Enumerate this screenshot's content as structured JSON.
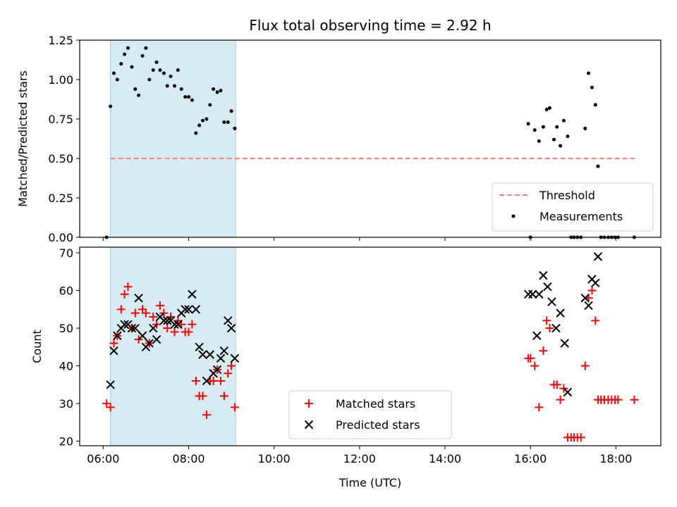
{
  "chart_data": {
    "type": "scatter",
    "title": "Flux total observing time = 2.92 h",
    "xlabel": "Time (UTC)",
    "x_ticks": [
      "06:00",
      "08:00",
      "10:00",
      "12:00",
      "14:00",
      "16:00",
      "18:00"
    ],
    "x_tick_hours": [
      6,
      8,
      10,
      12,
      14,
      16,
      18
    ],
    "x_range_hours": [
      5.45,
      19.05
    ],
    "shaded_region_hours": [
      6.17,
      9.1
    ],
    "shade_color": "#add8e6",
    "top": {
      "ylabel": "Matched/Predicted stars",
      "ylim": [
        0,
        1.25
      ],
      "y_ticks": [
        "0.00",
        "0.25",
        "0.50",
        "0.75",
        "1.00",
        "1.25"
      ],
      "y_tick_values": [
        0,
        0.25,
        0.5,
        0.75,
        1.0,
        1.25
      ],
      "threshold": {
        "name": "Threshold",
        "value": 0.5,
        "x_start": 6.17,
        "x_end": 18.43,
        "color": "#ff7f7f"
      },
      "measurements": {
        "name": "Measurements",
        "color": "#000000",
        "points": [
          [
            6.08,
            0.0
          ],
          [
            6.17,
            0.83
          ],
          [
            6.25,
            1.04
          ],
          [
            6.33,
            1.0
          ],
          [
            6.42,
            1.1
          ],
          [
            6.5,
            1.16
          ],
          [
            6.58,
            1.2
          ],
          [
            6.67,
            1.08
          ],
          [
            6.75,
            0.94
          ],
          [
            6.83,
            0.9
          ],
          [
            6.92,
            1.15
          ],
          [
            7.0,
            1.2
          ],
          [
            7.08,
            1.0
          ],
          [
            7.17,
            1.06
          ],
          [
            7.25,
            1.11
          ],
          [
            7.33,
            1.06
          ],
          [
            7.42,
            1.04
          ],
          [
            7.5,
            0.96
          ],
          [
            7.58,
            1.02
          ],
          [
            7.67,
            0.96
          ],
          [
            7.75,
            1.06
          ],
          [
            7.83,
            0.94
          ],
          [
            7.92,
            0.89
          ],
          [
            8.0,
            0.89
          ],
          [
            8.08,
            0.87
          ],
          [
            8.17,
            0.66
          ],
          [
            8.25,
            0.71
          ],
          [
            8.33,
            0.74
          ],
          [
            8.42,
            0.75
          ],
          [
            8.5,
            0.84
          ],
          [
            8.58,
            0.94
          ],
          [
            8.67,
            0.92
          ],
          [
            8.75,
            0.93
          ],
          [
            8.83,
            0.73
          ],
          [
            8.92,
            0.73
          ],
          [
            9.0,
            0.8
          ],
          [
            9.08,
            0.69
          ],
          [
            15.95,
            0.72
          ],
          [
            16.0,
            0.0
          ],
          [
            16.1,
            0.68
          ],
          [
            16.2,
            0.61
          ],
          [
            16.3,
            0.7
          ],
          [
            16.38,
            0.81
          ],
          [
            16.45,
            0.82
          ],
          [
            16.55,
            0.62
          ],
          [
            16.62,
            0.7
          ],
          [
            16.7,
            0.58
          ],
          [
            16.78,
            0.74
          ],
          [
            16.87,
            0.64
          ],
          [
            16.95,
            0.0
          ],
          [
            17.02,
            0.0
          ],
          [
            17.1,
            0.0
          ],
          [
            17.18,
            0.0
          ],
          [
            17.28,
            0.69
          ],
          [
            17.36,
            1.04
          ],
          [
            17.44,
            0.95
          ],
          [
            17.52,
            0.84
          ],
          [
            17.58,
            0.45
          ],
          [
            17.65,
            0.0
          ],
          [
            17.73,
            0.0
          ],
          [
            17.82,
            0.0
          ],
          [
            17.9,
            0.0
          ],
          [
            17.98,
            0.0
          ],
          [
            18.05,
            0.0
          ],
          [
            18.43,
            0.0
          ]
        ]
      },
      "legend": [
        "Threshold",
        "Measurements"
      ],
      "legend_loc": "lower right"
    },
    "bottom": {
      "ylabel": "Count",
      "ylim": [
        18.8,
        71.5
      ],
      "y_ticks": [
        "20",
        "30",
        "40",
        "50",
        "60",
        "70"
      ],
      "y_tick_values": [
        20,
        30,
        40,
        50,
        60,
        70
      ],
      "series": [
        {
          "name": "Matched stars",
          "marker": "+",
          "color": "#ff0000",
          "points": [
            [
              6.08,
              30
            ],
            [
              6.17,
              29
            ],
            [
              6.25,
              46
            ],
            [
              6.33,
              48
            ],
            [
              6.42,
              55
            ],
            [
              6.5,
              59
            ],
            [
              6.58,
              61
            ],
            [
              6.67,
              50
            ],
            [
              6.75,
              54
            ],
            [
              6.83,
              47
            ],
            [
              6.92,
              55
            ],
            [
              7.0,
              54
            ],
            [
              7.08,
              46
            ],
            [
              7.17,
              53
            ],
            [
              7.25,
              51
            ],
            [
              7.33,
              56
            ],
            [
              7.42,
              54
            ],
            [
              7.5,
              50
            ],
            [
              7.58,
              53
            ],
            [
              7.67,
              49
            ],
            [
              7.75,
              52
            ],
            [
              7.83,
              51
            ],
            [
              7.92,
              49
            ],
            [
              8.0,
              49
            ],
            [
              8.08,
              51
            ],
            [
              8.17,
              36
            ],
            [
              8.25,
              32
            ],
            [
              8.33,
              32
            ],
            [
              8.42,
              27
            ],
            [
              8.5,
              36
            ],
            [
              8.58,
              36
            ],
            [
              8.67,
              39
            ],
            [
              8.75,
              36
            ],
            [
              8.83,
              32
            ],
            [
              8.92,
              38
            ],
            [
              9.0,
              40
            ],
            [
              9.08,
              29
            ],
            [
              15.95,
              42
            ],
            [
              16.0,
              42
            ],
            [
              16.1,
              40
            ],
            [
              16.2,
              29
            ],
            [
              16.3,
              44
            ],
            [
              16.38,
              52
            ],
            [
              16.45,
              50
            ],
            [
              16.55,
              35
            ],
            [
              16.62,
              35
            ],
            [
              16.7,
              31
            ],
            [
              16.78,
              34
            ],
            [
              16.87,
              21
            ],
            [
              16.95,
              21
            ],
            [
              17.02,
              21
            ],
            [
              17.1,
              21
            ],
            [
              17.18,
              21
            ],
            [
              17.28,
              40
            ],
            [
              17.36,
              58
            ],
            [
              17.44,
              60
            ],
            [
              17.52,
              52
            ],
            [
              17.58,
              31
            ],
            [
              17.65,
              31
            ],
            [
              17.73,
              31
            ],
            [
              17.82,
              31
            ],
            [
              17.9,
              31
            ],
            [
              17.98,
              31
            ],
            [
              18.05,
              31
            ],
            [
              18.43,
              31
            ]
          ]
        },
        {
          "name": "Predicted stars",
          "marker": "x",
          "color": "#000000",
          "points": [
            [
              6.17,
              35
            ],
            [
              6.25,
              44
            ],
            [
              6.33,
              48
            ],
            [
              6.42,
              50
            ],
            [
              6.5,
              51
            ],
            [
              6.58,
              51
            ],
            [
              6.67,
              50
            ],
            [
              6.75,
              50
            ],
            [
              6.83,
              58
            ],
            [
              6.92,
              48
            ],
            [
              7.0,
              45
            ],
            [
              7.08,
              46
            ],
            [
              7.17,
              50
            ],
            [
              7.25,
              47
            ],
            [
              7.33,
              53
            ],
            [
              7.42,
              52
            ],
            [
              7.5,
              52
            ],
            [
              7.58,
              52
            ],
            [
              7.67,
              51
            ],
            [
              7.75,
              51
            ],
            [
              7.83,
              54
            ],
            [
              7.92,
              55
            ],
            [
              8.0,
              55
            ],
            [
              8.08,
              59
            ],
            [
              8.17,
              55
            ],
            [
              8.25,
              45
            ],
            [
              8.33,
              43
            ],
            [
              8.42,
              36
            ],
            [
              8.5,
              43
            ],
            [
              8.58,
              38
            ],
            [
              8.67,
              39
            ],
            [
              8.75,
              42
            ],
            [
              8.83,
              44
            ],
            [
              8.92,
              52
            ],
            [
              9.0,
              50
            ],
            [
              9.08,
              42
            ],
            [
              15.95,
              59
            ],
            [
              16.05,
              59
            ],
            [
              16.15,
              48
            ],
            [
              16.2,
              59
            ],
            [
              16.3,
              64
            ],
            [
              16.4,
              61
            ],
            [
              16.5,
              57
            ],
            [
              16.6,
              50
            ],
            [
              16.7,
              54
            ],
            [
              16.8,
              46
            ],
            [
              16.87,
              33
            ],
            [
              17.28,
              58
            ],
            [
              17.36,
              56
            ],
            [
              17.44,
              63
            ],
            [
              17.52,
              62
            ],
            [
              17.58,
              69
            ]
          ]
        }
      ],
      "legend": [
        "Matched stars",
        "Predicted stars"
      ],
      "legend_loc": "lower center"
    }
  }
}
